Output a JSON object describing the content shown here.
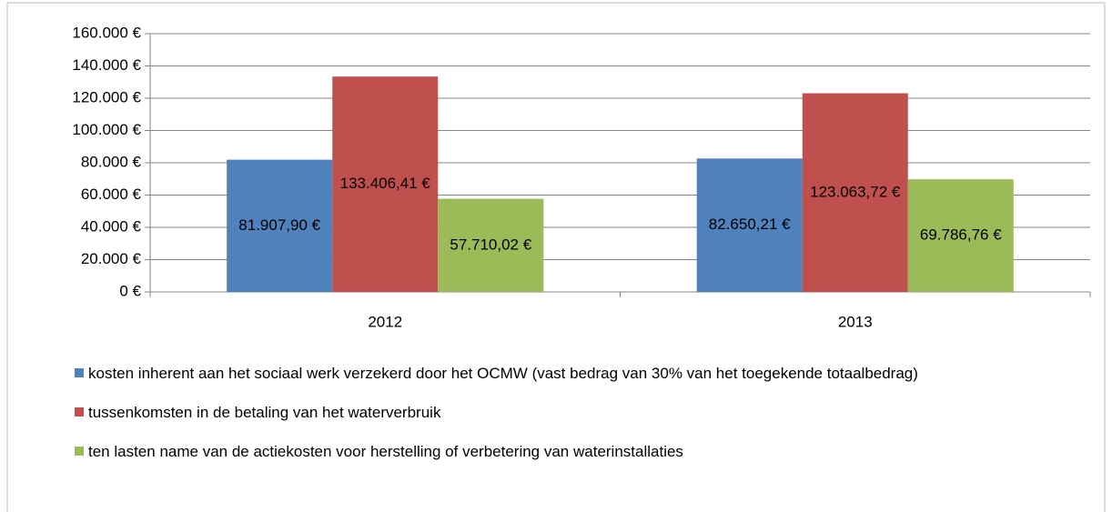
{
  "chart_data": {
    "type": "bar",
    "categories": [
      "2012",
      "2013"
    ],
    "series": [
      {
        "name": "kosten inherent aan het sociaal werk verzekerd door het OCMW (vast bedrag van 30% van het toegekende totaalbedrag)",
        "color": "#4f81bd",
        "values": [
          81907.9,
          82650.21
        ],
        "value_labels": [
          "81.907,90 €",
          "82.650,21 €"
        ]
      },
      {
        "name": "tussenkomsten in de betaling van het waterverbruik",
        "color": "#c0504d",
        "values": [
          133406.41,
          123063.72
        ],
        "value_labels": [
          "133.406,41 €",
          "123.063,72 €"
        ]
      },
      {
        "name": "ten lasten name van de actiekosten voor herstelling of verbetering van waterinstallaties",
        "color": "#9bbb59",
        "values": [
          57710.02,
          69786.76
        ],
        "value_labels": [
          "57.710,02 €",
          "69.786,76 €"
        ]
      }
    ],
    "ylim": [
      0,
      160000
    ],
    "yticks": [
      {
        "value": 0,
        "label": "0 €"
      },
      {
        "value": 20000,
        "label": "20.000 €"
      },
      {
        "value": 40000,
        "label": "40.000 €"
      },
      {
        "value": 60000,
        "label": "60.000 €"
      },
      {
        "value": 80000,
        "label": "80.000 €"
      },
      {
        "value": 100000,
        "label": "100.000 €"
      },
      {
        "value": 120000,
        "label": "120.000 €"
      },
      {
        "value": 140000,
        "label": "140.000 €"
      },
      {
        "value": 160000,
        "label": "160.000 €"
      }
    ],
    "grid": true
  }
}
